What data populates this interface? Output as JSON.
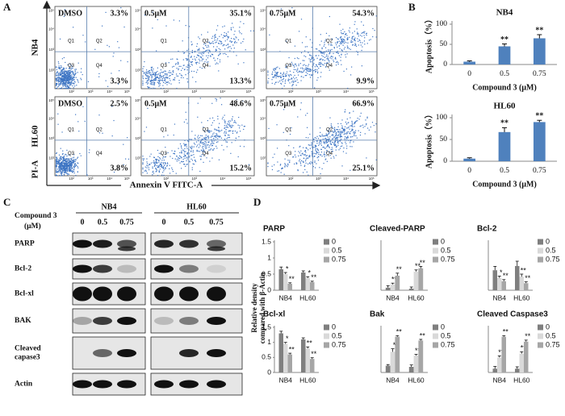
{
  "panel_labels": [
    "A",
    "B",
    "C",
    "D"
  ],
  "flow": {
    "rows": [
      "NB4",
      "HL60"
    ],
    "y_axis": "PI-A",
    "x_axis": "Annexin V FITC-A",
    "quadrant_labels": [
      "Q1",
      "Q2",
      "Q3",
      "Q4"
    ],
    "ticks": [
      "10²",
      "10³",
      "10⁴",
      "10⁵"
    ],
    "plots": [
      [
        {
          "condition": "DMSO",
          "upper_right": "3.3%",
          "lower_right": "3.3%"
        },
        {
          "condition": "0.5μM",
          "upper_right": "35.1%",
          "lower_right": "13.3%"
        },
        {
          "condition": "0.75μM",
          "upper_right": "54.3%",
          "lower_right": "9.9%"
        }
      ],
      [
        {
          "condition": "DMSO",
          "upper_right": "2.5%",
          "lower_right": "3.8%"
        },
        {
          "condition": "0.5μM",
          "upper_right": "48.6%",
          "lower_right": "15.2%"
        },
        {
          "condition": "0.75μM",
          "upper_right": "66.9%",
          "lower_right": "25.1%"
        }
      ]
    ]
  },
  "blot": {
    "groups": [
      "NB4",
      "HL60"
    ],
    "treatment": [
      "Compound 3",
      "(μM)"
    ],
    "lanes": [
      "0",
      "0.5",
      "0.75"
    ],
    "rows": [
      [
        "PARP"
      ],
      [
        "Bcl-2"
      ],
      [
        "Bcl-xl"
      ],
      [
        "BAK"
      ],
      [
        "Cleaved",
        "capase3"
      ],
      [
        "Actin"
      ]
    ]
  },
  "panel_d": {
    "y_label": [
      "Relative density",
      "compared with β-Actin"
    ]
  },
  "chart_data": [
    {
      "type": "bar",
      "title": "NB4",
      "categories": [
        "0",
        "0.5",
        "0.75"
      ],
      "values": [
        7,
        45,
        65
      ],
      "errors": [
        2,
        6,
        9
      ],
      "annotations": [
        null,
        "**",
        "**"
      ],
      "color": "#4f81bd",
      "ylim": [
        0,
        100
      ],
      "yticks": [
        0,
        50,
        100
      ],
      "x_label": "Compound 3 (μM)",
      "y_label": "Apoptosis（%）"
    },
    {
      "type": "bar",
      "title": "HL60",
      "categories": [
        "0",
        "0.5",
        "0.75"
      ],
      "values": [
        6,
        67,
        90
      ],
      "errors": [
        2,
        10,
        4
      ],
      "annotations": [
        null,
        "**",
        "**"
      ],
      "color": "#4f81bd",
      "ylim": [
        0,
        100
      ],
      "yticks": [
        0,
        50,
        100
      ],
      "x_label": "Compound 3 (μM)",
      "y_label": "Apoptosis（%）"
    },
    {
      "type": "grouped_bar",
      "title": "PARP",
      "categories": [
        "NB4",
        "HL60"
      ],
      "ylim": [
        0,
        1.5
      ],
      "yticks": [
        0,
        0.5,
        1,
        1.5
      ],
      "series": [
        {
          "name": "0",
          "color": "#7f7f7f",
          "values": [
            0.65,
            0.55
          ],
          "errors": [
            0.07,
            0.05
          ]
        },
        {
          "name": "0.5",
          "color": "#d9d9d9",
          "values": [
            0.5,
            0.38
          ],
          "errors": [
            0.05,
            0.04
          ],
          "annotations": [
            "*",
            "*"
          ]
        },
        {
          "name": "0.75",
          "color": "#a6a6a6",
          "values": [
            0.2,
            0.25
          ],
          "errors": [
            0.03,
            0.03
          ],
          "annotations": [
            "**",
            "**"
          ]
        }
      ]
    },
    {
      "type": "grouped_bar",
      "title": "Cleaved-PARP",
      "categories": [
        "NB4",
        "HL60"
      ],
      "ylim": [
        0,
        1.5
      ],
      "series": [
        {
          "name": "0",
          "color": "#7f7f7f",
          "values": [
            0.08,
            0.05
          ],
          "errors": [
            0.06,
            0.05
          ]
        },
        {
          "name": "0.5",
          "color": "#d9d9d9",
          "values": [
            0.18,
            0.58
          ],
          "errors": [
            0.04,
            0.05
          ],
          "annotations": [
            "**",
            "**"
          ]
        },
        {
          "name": "0.75",
          "color": "#a6a6a6",
          "values": [
            0.45,
            0.68
          ],
          "errors": [
            0.08,
            0.06
          ],
          "annotations": [
            "**",
            "**"
          ]
        }
      ]
    },
    {
      "type": "grouped_bar",
      "title": "Bcl-2",
      "categories": [
        "NB4",
        "HL60"
      ],
      "ylim": [
        0,
        1.5
      ],
      "series": [
        {
          "name": "0",
          "color": "#7f7f7f",
          "values": [
            0.62,
            0.75
          ],
          "errors": [
            0.12,
            0.15
          ]
        },
        {
          "name": "0.5",
          "color": "#d9d9d9",
          "values": [
            0.38,
            0.42
          ],
          "errors": [
            0.06,
            0.08
          ],
          "annotations": [
            "*",
            "**"
          ]
        },
        {
          "name": "0.75",
          "color": "#a6a6a6",
          "values": [
            0.28,
            0.22
          ],
          "errors": [
            0.05,
            0.04
          ],
          "annotations": [
            "**",
            "**"
          ]
        }
      ]
    },
    {
      "type": "grouped_bar",
      "title": "Bcl-xl",
      "categories": [
        "NB4",
        "HL60"
      ],
      "ylim": [
        0,
        1.5
      ],
      "yticks": [
        0,
        0.5,
        1,
        1.5
      ],
      "series": [
        {
          "name": "0",
          "color": "#7f7f7f",
          "values": [
            1.3,
            1.1
          ],
          "errors": [
            0.07,
            0.05
          ]
        },
        {
          "name": "0.5",
          "color": "#d9d9d9",
          "values": [
            0.95,
            0.8
          ],
          "errors": [
            0.05,
            0.05
          ],
          "annotations": [
            "*",
            "**"
          ]
        },
        {
          "name": "0.75",
          "color": "#a6a6a6",
          "values": [
            0.6,
            0.45
          ],
          "errors": [
            0.04,
            0.04
          ],
          "annotations": [
            "**",
            "**"
          ]
        }
      ]
    },
    {
      "type": "grouped_bar",
      "title": "Bak",
      "categories": [
        "NB4",
        "HL60"
      ],
      "ylim": [
        0,
        1.2
      ],
      "series": [
        {
          "name": "0",
          "color": "#7f7f7f",
          "values": [
            0.18,
            0.15
          ],
          "errors": [
            0.03,
            0.05
          ]
        },
        {
          "name": "0.5",
          "color": "#d9d9d9",
          "values": [
            0.55,
            0.45
          ],
          "errors": [
            0.08,
            0.03
          ],
          "annotations": [
            "*",
            "**"
          ]
        },
        {
          "name": "0.75",
          "color": "#a6a6a6",
          "values": [
            0.95,
            0.85
          ],
          "errors": [
            0.03,
            0.03
          ],
          "annotations": [
            "**",
            "**"
          ]
        }
      ]
    },
    {
      "type": "grouped_bar",
      "title": "Cleaved Caspase3",
      "categories": [
        "NB4",
        "HL60"
      ],
      "ylim": [
        0,
        1.2
      ],
      "series": [
        {
          "name": "0",
          "color": "#7f7f7f",
          "values": [
            0.1,
            0.1
          ],
          "errors": [
            0.06,
            0.05
          ]
        },
        {
          "name": "0.5",
          "color": "#d9d9d9",
          "values": [
            0.4,
            0.5
          ],
          "errors": [
            0.04,
            0.05
          ],
          "annotations": [
            "**",
            "**"
          ]
        },
        {
          "name": "0.75",
          "color": "#a6a6a6",
          "values": [
            0.95,
            0.82
          ],
          "errors": [
            0.03,
            0.04
          ],
          "annotations": [
            "**",
            "**"
          ]
        }
      ]
    }
  ]
}
